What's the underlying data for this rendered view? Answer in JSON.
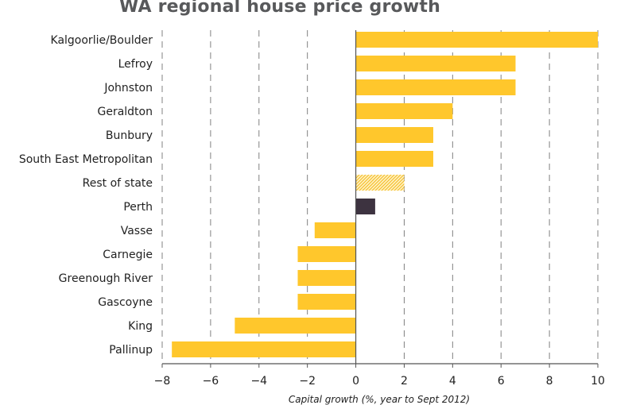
{
  "chart_data": {
    "type": "bar",
    "orientation": "horizontal",
    "title": "WA regional house price growth",
    "xlabel": "Capital growth (%, year to Sept 2012)",
    "ylabel": "",
    "xlim": [
      -8,
      10
    ],
    "xticks": [
      -8,
      -6,
      -4,
      -2,
      0,
      2,
      4,
      6,
      8,
      10
    ],
    "grid": "vertical dashed",
    "categories": [
      "Kalgoorlie/Boulder",
      "Lefroy",
      "Johnston",
      "Geraldton",
      "Bunbury",
      "South East Metropolitan",
      "Rest of state",
      "Perth",
      "Vasse",
      "Carnegie",
      "Greenough River",
      "Gascoyne",
      "King",
      "Pallinup"
    ],
    "values": [
      10,
      6.6,
      6.6,
      4.0,
      3.2,
      3.2,
      2.0,
      0.8,
      -1.7,
      -2.4,
      -2.4,
      -2.4,
      -5.0,
      -7.6
    ],
    "bar_styles": [
      "solid",
      "solid",
      "solid",
      "solid",
      "solid",
      "solid",
      "hatched",
      "dark",
      "solid",
      "solid",
      "solid",
      "solid",
      "solid",
      "solid"
    ],
    "colors": {
      "solid": "#ffc72c",
      "hatched": "#ffc72c",
      "dark": "#3d3340",
      "grid": "#808080",
      "axis": "#555555"
    }
  }
}
